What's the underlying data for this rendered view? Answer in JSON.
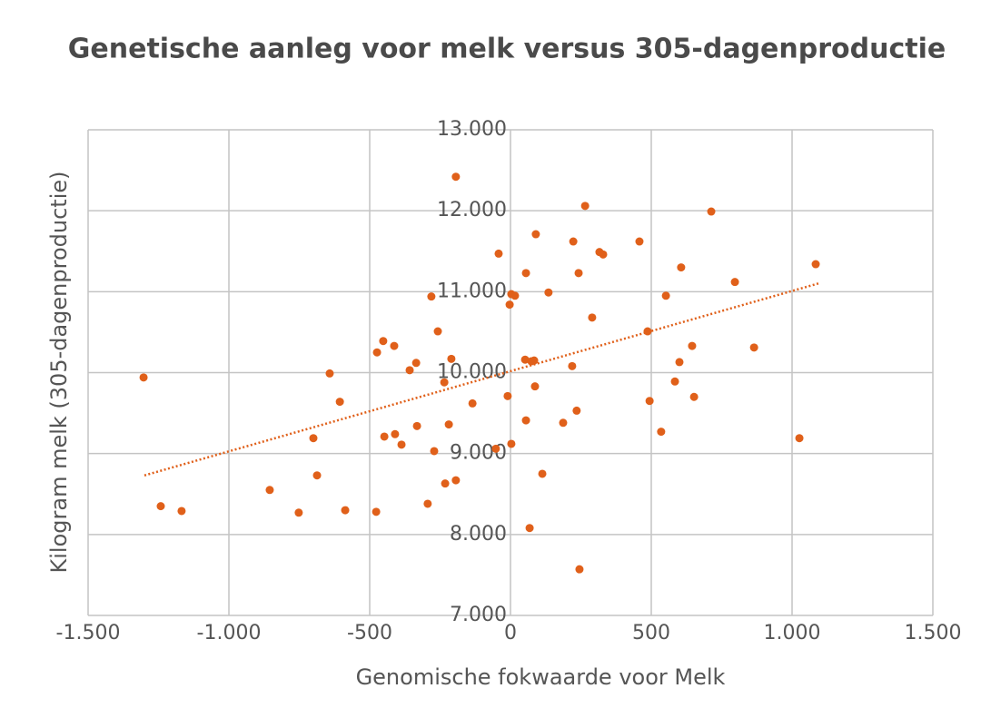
{
  "chart_data": {
    "type": "scatter",
    "title": "Genetische aanleg voor melk versus 305-dagenproductie",
    "x_label": "Genomische fokwaarde voor Melk",
    "y_label": "Kilogram melk (305-dagenproductie)",
    "color": "#e0601a",
    "grid": true,
    "xlim": [
      -1500,
      1500
    ],
    "xticks": [
      {
        "value": -1500,
        "label": "-1.500"
      },
      {
        "value": -1000,
        "label": "-1.000"
      },
      -500,
      0,
      500,
      {
        "value": 1000,
        "label": "1.000"
      },
      {
        "value": 1500,
        "label": "1.500"
      }
    ],
    "ylim": [
      7000,
      13000
    ],
    "yticks": [
      {
        "value": 7000,
        "label": "7.000"
      },
      {
        "value": 8000,
        "label": "8.000"
      },
      {
        "value": 9000,
        "label": "9.000"
      },
      {
        "value": 10000,
        "label": "10.000"
      },
      {
        "value": 11000,
        "label": "11.000"
      },
      {
        "value": 12000,
        "label": "12.000"
      },
      {
        "value": 13000,
        "label": "13.000"
      }
    ],
    "x": [
      -1303,
      -1242,
      -1168,
      -855,
      -752,
      -700,
      -687,
      -642,
      -606,
      -587,
      -477,
      -474,
      -452,
      -448,
      -413,
      -410,
      -387,
      -358,
      -335,
      -332,
      -294,
      -281,
      -271,
      -258,
      -235,
      -232,
      -219,
      -210,
      -194,
      -194,
      -135,
      -52,
      -42,
      -10,
      -3,
      3,
      3,
      16,
      52,
      55,
      55,
      68,
      74,
      84,
      87,
      90,
      113,
      135,
      187,
      219,
      223,
      235,
      242,
      245,
      265,
      290,
      316,
      329,
      458,
      487,
      494,
      535,
      552,
      584,
      600,
      606,
      645,
      652,
      713,
      797,
      865,
      1026,
      1084
    ],
    "values": [
      9940,
      8350,
      8290,
      8550,
      8270,
      9190,
      8730,
      9990,
      9640,
      8300,
      8280,
      10250,
      10390,
      9210,
      10330,
      9240,
      9110,
      10030,
      10120,
      9340,
      8380,
      10940,
      9030,
      10510,
      9880,
      8630,
      9360,
      10170,
      12420,
      8670,
      9620,
      9060,
      11470,
      9710,
      10840,
      10970,
      9120,
      10950,
      10160,
      9410,
      11230,
      8080,
      10140,
      10150,
      9830,
      11710,
      8750,
      10990,
      9380,
      10080,
      11620,
      9530,
      11230,
      7570,
      12060,
      10680,
      11490,
      11460,
      11620,
      10510,
      9650,
      9270,
      10950,
      9890,
      10130,
      11300,
      10330,
      9700,
      11990,
      11120,
      10310,
      9190,
      11340
    ],
    "trendline": {
      "x": [
        -1300,
        1097
      ],
      "y": [
        8730,
        11105
      ],
      "color": "#e0601a"
    }
  }
}
